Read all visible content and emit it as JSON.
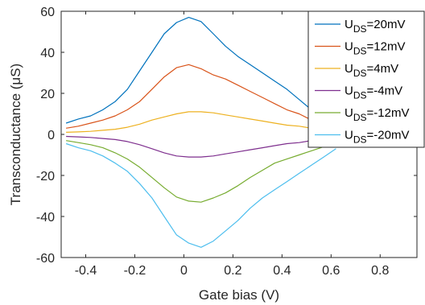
{
  "chart_data": {
    "type": "line",
    "xlabel": "Gate bias (V)",
    "ylabel": "Transconductance (μS)",
    "xlim": [
      -0.5,
      0.95
    ],
    "ylim": [
      -60,
      60
    ],
    "x_ticks": [
      -0.4,
      -0.2,
      0,
      0.2,
      0.4,
      0.6,
      0.8
    ],
    "x_tick_labels": [
      "-0.4",
      "-0.2",
      "0",
      "0.2",
      "0.4",
      "0.6",
      "0.8"
    ],
    "y_ticks": [
      -60,
      -40,
      -20,
      0,
      20,
      40,
      60
    ],
    "y_tick_labels": [
      "-60",
      "-40",
      "-20",
      "0",
      "20",
      "40",
      "60"
    ],
    "grid": false,
    "legend_position": "top-right",
    "x": [
      -0.48,
      -0.43,
      -0.38,
      -0.33,
      -0.28,
      -0.23,
      -0.18,
      -0.13,
      -0.08,
      -0.03,
      0.02,
      0.07,
      0.12,
      0.17,
      0.22,
      0.27,
      0.32,
      0.37,
      0.42,
      0.47,
      0.52,
      0.57,
      0.62
    ],
    "series": [
      {
        "name": "U_DS=20mV",
        "color": "#0072BD",
        "values": [
          5.5,
          7.5,
          9,
          12,
          16,
          22,
          31,
          40,
          49,
          54.5,
          57,
          55,
          49,
          43,
          38,
          34,
          30,
          26,
          22,
          17,
          12,
          8,
          4
        ]
      },
      {
        "name": "U_DS=12mV",
        "color": "#D95319",
        "values": [
          3,
          4,
          5.5,
          7,
          9,
          12,
          16,
          22,
          28,
          32.5,
          34,
          32,
          29,
          27,
          24,
          21,
          18,
          15,
          12,
          10,
          7,
          5,
          2.5
        ]
      },
      {
        "name": "U_DS=4mV",
        "color": "#EDB120",
        "values": [
          1,
          1.2,
          1.5,
          2,
          2.5,
          3.5,
          5,
          7,
          8.5,
          10,
          11,
          11,
          10.5,
          9.5,
          8.5,
          7.5,
          6.5,
          5.5,
          4.5,
          4,
          3,
          2,
          1
        ]
      },
      {
        "name": "U_DS=-4mV",
        "color": "#7E2F8E",
        "values": [
          -1,
          -1.2,
          -1.5,
          -2,
          -2.5,
          -3.5,
          -5,
          -7,
          -9,
          -10.5,
          -11,
          -11,
          -10.5,
          -9.5,
          -8.5,
          -7.5,
          -6.5,
          -5.5,
          -4.5,
          -4,
          -3,
          -2,
          -1
        ]
      },
      {
        "name": "U_DS=-12mV",
        "color": "#77AC30",
        "values": [
          -3,
          -4,
          -5,
          -6.5,
          -9,
          -12,
          -16,
          -21,
          -26,
          -30.5,
          -32.5,
          -33,
          -31,
          -28.5,
          -25,
          -21,
          -17.5,
          -14,
          -12,
          -10,
          -8,
          -6,
          -3.5
        ]
      },
      {
        "name": "U_DS=-20mV",
        "color": "#4DBEEE",
        "values": [
          -4.5,
          -6.5,
          -8,
          -10.5,
          -14,
          -18,
          -24,
          -31,
          -40,
          -49,
          -53,
          -55,
          -52,
          -47,
          -42,
          -36,
          -31,
          -27,
          -23,
          -19,
          -15,
          -11,
          -7
        ]
      }
    ],
    "legend_items": [
      {
        "base": "U",
        "sub": "DS",
        "value": "=20mV"
      },
      {
        "base": "U",
        "sub": "DS",
        "value": "=12mV"
      },
      {
        "base": "U",
        "sub": "DS",
        "value": "=4mV"
      },
      {
        "base": "U",
        "sub": "DS",
        "value": "=-4mV"
      },
      {
        "base": "U",
        "sub": "DS",
        "value": "=-12mV"
      },
      {
        "base": "U",
        "sub": "DS",
        "value": "=-20mV"
      }
    ]
  }
}
